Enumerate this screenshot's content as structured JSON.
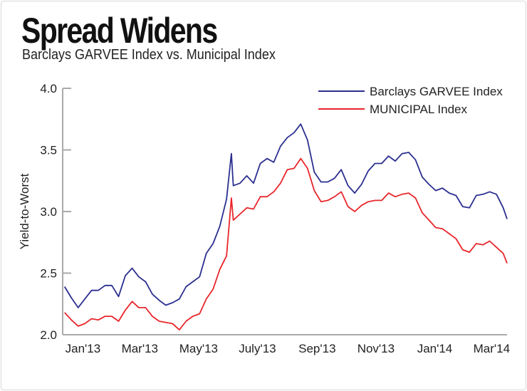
{
  "header": {
    "title": "Spread Widens",
    "subtitle": "Barclays GARVEE Index vs. Municipal Index"
  },
  "chart_data": {
    "type": "line",
    "title": "Spread Widens",
    "subtitle": "Barclays GARVEE Index vs. Municipal Index",
    "xlabel": "",
    "ylabel": "Yield-to-Worst",
    "ylim": [
      2.0,
      4.0
    ],
    "xlim": [
      "2012-12-25",
      "2014-03-31"
    ],
    "yticks": [
      2.0,
      2.5,
      3.0,
      3.5,
      4.0
    ],
    "ytick_labels": [
      "2.0",
      "2.5",
      "3.0",
      "3.5",
      "4.0"
    ],
    "xticks": [
      "2013-01-15",
      "2013-03-15",
      "2013-05-15",
      "2013-07-15",
      "2013-09-15",
      "2013-11-15",
      "2014-01-15",
      "2014-03-15"
    ],
    "xtick_labels": [
      "Jan'13",
      "Mar'13",
      "May'13",
      "July'13",
      "Sep'13",
      "Nov'13",
      "Jan'14",
      "Mar'14"
    ],
    "grid": false,
    "legend_position": "top-right",
    "x": [
      "2012-12-27",
      "2013-01-03",
      "2013-01-10",
      "2013-01-17",
      "2013-01-24",
      "2013-01-31",
      "2013-02-07",
      "2013-02-14",
      "2013-02-21",
      "2013-02-28",
      "2013-03-07",
      "2013-03-14",
      "2013-03-21",
      "2013-03-28",
      "2013-04-04",
      "2013-04-11",
      "2013-04-18",
      "2013-04-25",
      "2013-05-02",
      "2013-05-09",
      "2013-05-16",
      "2013-05-23",
      "2013-05-30",
      "2013-06-06",
      "2013-06-13",
      "2013-06-18",
      "2013-06-20",
      "2013-06-27",
      "2013-07-04",
      "2013-07-11",
      "2013-07-18",
      "2013-07-25",
      "2013-08-01",
      "2013-08-08",
      "2013-08-15",
      "2013-08-22",
      "2013-08-29",
      "2013-09-05",
      "2013-09-12",
      "2013-09-19",
      "2013-09-26",
      "2013-10-03",
      "2013-10-10",
      "2013-10-17",
      "2013-10-24",
      "2013-10-31",
      "2013-11-07",
      "2013-11-14",
      "2013-11-21",
      "2013-11-28",
      "2013-12-05",
      "2013-12-12",
      "2013-12-19",
      "2013-12-26",
      "2014-01-02",
      "2014-01-09",
      "2014-01-16",
      "2014-01-23",
      "2014-01-30",
      "2014-02-06",
      "2014-02-13",
      "2014-02-20",
      "2014-02-27",
      "2014-03-06",
      "2014-03-13",
      "2014-03-20",
      "2014-03-27",
      "2014-03-31"
    ],
    "series": [
      {
        "name": "Barclays GARVEE Index",
        "color": "#2b2f8f",
        "values": [
          2.39,
          2.3,
          2.22,
          2.29,
          2.36,
          2.36,
          2.4,
          2.4,
          2.31,
          2.48,
          2.54,
          2.47,
          2.43,
          2.33,
          2.28,
          2.24,
          2.26,
          2.29,
          2.39,
          2.43,
          2.47,
          2.66,
          2.74,
          2.88,
          3.1,
          3.47,
          3.21,
          3.23,
          3.29,
          3.23,
          3.39,
          3.43,
          3.4,
          3.53,
          3.6,
          3.64,
          3.71,
          3.58,
          3.32,
          3.24,
          3.24,
          3.27,
          3.34,
          3.21,
          3.15,
          3.22,
          3.33,
          3.39,
          3.39,
          3.45,
          3.41,
          3.47,
          3.48,
          3.42,
          3.28,
          3.22,
          3.17,
          3.19,
          3.15,
          3.13,
          3.04,
          3.03,
          3.13,
          3.14,
          3.16,
          3.14,
          3.03,
          2.94
        ]
      },
      {
        "name": "MUNICIPAL Index",
        "color": "#e8262b",
        "values": [
          2.18,
          2.12,
          2.07,
          2.09,
          2.13,
          2.12,
          2.15,
          2.15,
          2.11,
          2.2,
          2.27,
          2.22,
          2.22,
          2.15,
          2.11,
          2.1,
          2.09,
          2.04,
          2.11,
          2.15,
          2.17,
          2.29,
          2.37,
          2.53,
          2.64,
          3.11,
          2.93,
          2.98,
          3.03,
          3.02,
          3.12,
          3.12,
          3.16,
          3.23,
          3.34,
          3.35,
          3.43,
          3.35,
          3.17,
          3.08,
          3.09,
          3.12,
          3.16,
          3.04,
          3.0,
          3.05,
          3.08,
          3.09,
          3.09,
          3.15,
          3.12,
          3.14,
          3.15,
          3.11,
          2.99,
          2.93,
          2.87,
          2.86,
          2.82,
          2.78,
          2.69,
          2.67,
          2.74,
          2.73,
          2.76,
          2.71,
          2.66,
          2.58
        ]
      }
    ]
  }
}
